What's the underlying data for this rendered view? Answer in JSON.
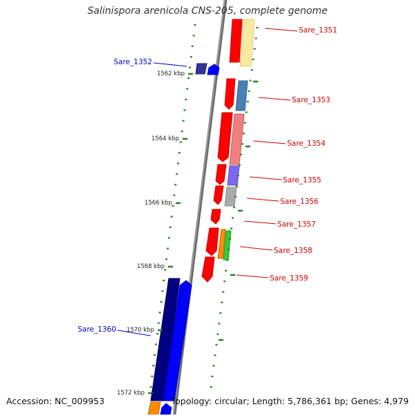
{
  "title": "Salinispora arenicola CNS-205, complete genome",
  "accession": "Accession: NC_009953",
  "topology": "Topology: circular; Length: 5,786,361 bp; Genes: 4,979",
  "ticks": [
    "1562 kbp",
    "1564 kbp",
    "1566 kbp",
    "1568 kbp",
    "1570 kbp",
    "1572 kbp"
  ],
  "genes": [
    {
      "label": "Sare_1351",
      "strand": "plus"
    },
    {
      "label": "Sare_1352",
      "strand": "minus"
    },
    {
      "label": "Sare_1353",
      "strand": "plus"
    },
    {
      "label": "Sare_1354",
      "strand": "plus"
    },
    {
      "label": "Sare_1355",
      "strand": "plus"
    },
    {
      "label": "Sare_1356",
      "strand": "plus"
    },
    {
      "label": "Sare_1357",
      "strand": "plus"
    },
    {
      "label": "Sare_1358",
      "strand": "plus"
    },
    {
      "label": "Sare_1359",
      "strand": "plus"
    },
    {
      "label": "Sare_1360",
      "strand": "minus"
    }
  ],
  "colors": {
    "plus_label": "#cc0000",
    "minus_label": "#0000cc",
    "tick": "#2a7a2a",
    "backbone": "#888888"
  }
}
